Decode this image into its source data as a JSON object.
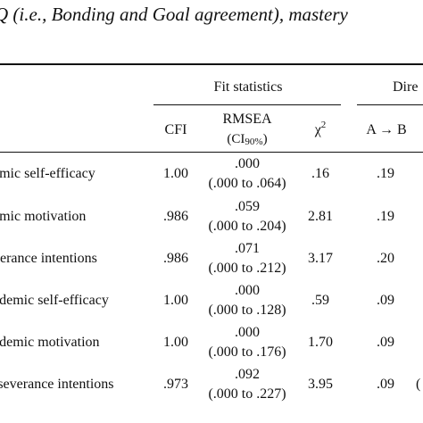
{
  "caption": "Q (i.e., Bonding and Goal agreement), mastery",
  "table": {
    "group_headers": {
      "fit": "Fit statistics",
      "direct": "Dire"
    },
    "col_headers": {
      "cfi": "CFI",
      "rmsea": "RMSEA",
      "ci_open": "(CI",
      "ci_sub": "90%",
      "ci_close": ")",
      "chi": "χ",
      "chi_sup": "2",
      "ab": "A → B"
    },
    "rows": [
      {
        "name": "emic self-efficacy",
        "cfi": "1.00",
        "rmsea": ".000",
        "ci": "(.000 to .064)",
        "chi2": ".16",
        "ab": ".19",
        "extra": ""
      },
      {
        "name": "emic motivation",
        "cfi": ".986",
        "rmsea": ".059",
        "ci": "(.000 to .204)",
        "chi2": "2.81",
        "ab": ".19",
        "extra": ""
      },
      {
        "name": "verance intentions",
        "cfi": ".986",
        "rmsea": ".071",
        "ci": "(.000 to .212)",
        "chi2": "3.17",
        "ab": ".20",
        "extra": ""
      },
      {
        "name": "ademic self-efficacy",
        "cfi": "1.00",
        "rmsea": ".000",
        "ci": "(.000 to .128)",
        "chi2": ".59",
        "ab": ".09",
        "extra": ""
      },
      {
        "name": "ademic motivation",
        "cfi": "1.00",
        "rmsea": ".000",
        "ci": "(.000 to .176)",
        "chi2": "1.70",
        "ab": ".09",
        "extra": ""
      },
      {
        "name": "rseverance intentions",
        "cfi": ".973",
        "rmsea": ".092",
        "ci": "(.000 to .227)",
        "chi2": "3.95",
        "ab": ".09",
        "extra": "("
      }
    ]
  }
}
